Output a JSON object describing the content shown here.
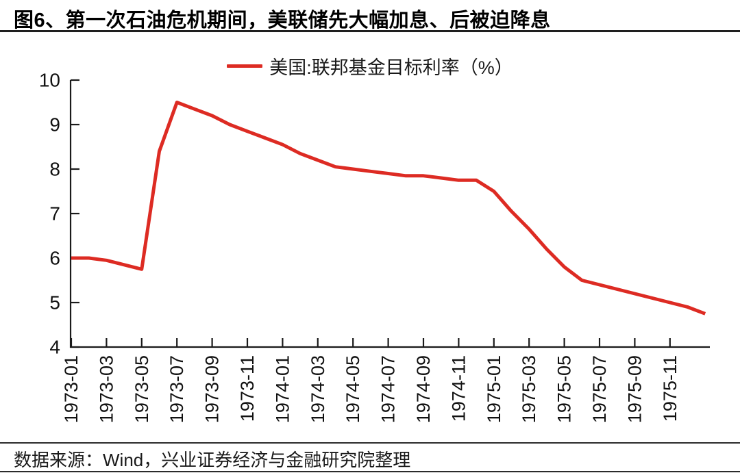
{
  "title": "图6、第一次石油危机期间，美联储先大幅加息、后被迫降息",
  "footer": {
    "source_text": "数据来源：Wind，兴业证券经济与金融研究院整理"
  },
  "colors": {
    "accent_red": "#dd2b23",
    "axis": "#1a1a1a",
    "text": "#111111"
  },
  "chart_data": {
    "type": "line",
    "title": "图6、第一次石油危机期间，美联储先大幅加息、后被迫降息",
    "legend": {
      "label": "美国:联邦基金目标利率（%）",
      "position": "top-center",
      "marker": "line",
      "color": "#dd2b23"
    },
    "grid": false,
    "ylim": [
      4,
      10
    ],
    "yticks": [
      4,
      5,
      6,
      7,
      8,
      9,
      10
    ],
    "xlabel": "",
    "ylabel": "",
    "x_tick_labels": [
      "1973-01",
      "1973-03",
      "1973-05",
      "1973-07",
      "1973-09",
      "1973-11",
      "1974-01",
      "1974-03",
      "1974-05",
      "1974-07",
      "1974-09",
      "1974-11",
      "1975-01",
      "1975-03",
      "1975-05",
      "1975-07",
      "1975-09",
      "1975-11"
    ],
    "series": [
      {
        "name": "美国:联邦基金目标利率（%）",
        "color": "#dd2b23",
        "x": [
          "1973-01",
          "1973-02",
          "1973-03",
          "1973-04",
          "1973-05",
          "1973-06",
          "1973-07",
          "1973-08",
          "1973-09",
          "1973-10",
          "1973-11",
          "1973-12",
          "1974-01",
          "1974-02",
          "1974-03",
          "1974-04",
          "1974-05",
          "1974-06",
          "1974-07",
          "1974-08",
          "1974-09",
          "1974-10",
          "1974-11",
          "1974-12",
          "1975-01",
          "1975-02",
          "1975-03",
          "1975-04",
          "1975-05",
          "1975-06",
          "1975-07",
          "1975-08",
          "1975-09",
          "1975-10",
          "1975-11",
          "1975-12",
          "1976-01"
        ],
        "values": [
          6.0,
          6.0,
          5.95,
          5.85,
          5.75,
          8.4,
          9.5,
          9.35,
          9.2,
          9.0,
          8.85,
          8.7,
          8.55,
          8.35,
          8.2,
          8.05,
          8.0,
          7.95,
          7.9,
          7.85,
          7.85,
          7.8,
          7.75,
          7.75,
          7.5,
          7.05,
          6.65,
          6.2,
          5.8,
          5.5,
          5.4,
          5.3,
          5.2,
          5.1,
          5.0,
          4.9,
          4.75
        ]
      }
    ]
  }
}
